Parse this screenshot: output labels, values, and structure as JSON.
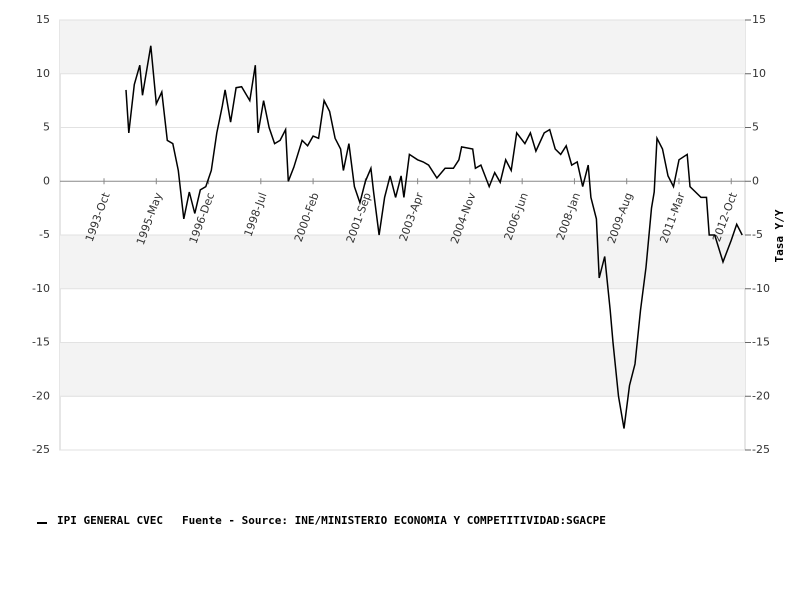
{
  "chart_data": {
    "type": "line",
    "series": [
      {
        "name": "IPI GENERAL CVEC",
        "color": "#000000",
        "x": [
          "1994-Jun",
          "1994-Jul",
          "1994-Sep",
          "1994-Nov",
          "1994-Dec",
          "1995-Mar",
          "1995-May",
          "1995-Jul",
          "1995-Sep",
          "1995-Nov",
          "1996-Jan",
          "1996-Mar",
          "1996-May",
          "1996-Jul",
          "1996-Sep",
          "1996-Nov",
          "1997-Jan",
          "1997-Mar",
          "1997-May",
          "1997-Jun",
          "1997-Aug",
          "1997-Oct",
          "1997-Dec",
          "1998-Mar",
          "1998-May",
          "1998-Jun",
          "1998-Aug",
          "1998-Oct",
          "1998-Dec",
          "1999-Feb",
          "1999-Apr",
          "1999-May",
          "1999-Jul",
          "1999-Oct",
          "1999-Dec",
          "2000-Feb",
          "2000-Apr",
          "2000-Jun",
          "2000-Aug",
          "2000-Oct",
          "2000-Dec",
          "2001-Jan",
          "2001-Mar",
          "2001-May",
          "2001-Jul",
          "2001-Sep",
          "2001-Nov",
          "2001-Dec",
          "2002-Feb",
          "2002-Apr",
          "2002-Jun",
          "2002-Aug",
          "2002-Oct",
          "2002-Nov",
          "2003-Jan",
          "2003-Apr",
          "2003-Jun",
          "2003-Aug",
          "2003-Nov",
          "2004-Feb",
          "2004-May",
          "2004-Jul",
          "2004-Aug",
          "2004-Dec",
          "2005-Jan",
          "2005-Mar",
          "2005-Jun",
          "2005-Aug",
          "2005-Oct",
          "2005-Dec",
          "2006-Feb",
          "2006-Apr",
          "2006-Jul",
          "2006-Sep",
          "2006-Nov",
          "2007-Feb",
          "2007-Apr",
          "2007-Jun",
          "2007-Aug",
          "2007-Oct",
          "2007-Dec",
          "2008-Feb",
          "2008-Apr",
          "2008-Jun",
          "2008-Jul",
          "2008-Sep",
          "2008-Oct",
          "2008-Dec",
          "2009-Feb",
          "2009-Mar",
          "2009-May",
          "2009-Jul",
          "2009-Sep",
          "2009-Nov",
          "2010-Jan",
          "2010-Mar",
          "2010-May",
          "2010-Jun",
          "2010-Jul",
          "2010-Sep",
          "2010-Nov",
          "2011-Jan",
          "2011-Mar",
          "2011-Jun",
          "2011-Jul",
          "2011-Sep",
          "2011-Nov",
          "2012-Jan",
          "2012-Feb",
          "2012-Apr",
          "2012-Jul",
          "2012-Oct",
          "2012-Dec",
          "2013-Feb"
        ],
        "values": [
          8.5,
          4.5,
          9,
          10.8,
          8,
          12.6,
          7.2,
          8.3,
          3.8,
          3.5,
          1,
          -3.5,
          -1,
          -3,
          -0.8,
          -0.5,
          1,
          4.5,
          7,
          8.5,
          5.5,
          8.7,
          8.8,
          7.5,
          10.8,
          4.5,
          7.5,
          5,
          3.5,
          3.8,
          4.8,
          0,
          1.3,
          3.8,
          3.3,
          4.2,
          4,
          7.5,
          6.5,
          4,
          3,
          1,
          3.5,
          -0.5,
          -2,
          0,
          1.2,
          -1,
          -5,
          -1.5,
          0.5,
          -1.5,
          0.5,
          -1.5,
          2.5,
          2,
          1.8,
          1.5,
          0.3,
          1.2,
          1.2,
          2,
          3.2,
          3,
          1.2,
          1.5,
          -0.5,
          0.8,
          -0.1,
          2,
          1,
          4.5,
          3.5,
          4.5,
          2.8,
          4.5,
          4.8,
          3,
          2.5,
          3.3,
          1.5,
          1.8,
          -0.5,
          1.5,
          -1.5,
          -3.5,
          -9,
          -7,
          -12,
          -15,
          -20,
          -23,
          -19,
          -17,
          -12,
          -8,
          -2.5,
          -1,
          4,
          3,
          0.5,
          -0.5,
          2,
          2.5,
          -0.5,
          -1,
          -1.5,
          -1.5,
          -5,
          -5,
          -7.5,
          -5.5,
          -4,
          -5
        ]
      }
    ],
    "xlim": [
      "1992-Jun",
      "2013-Mar"
    ],
    "xticks": [
      "1993-Oct",
      "1995-May",
      "1996-Dec",
      "1998-Jul",
      "2000-Feb",
      "2001-Sep",
      "2003-Apr",
      "2004-Nov",
      "2006-Jun",
      "2008-Jan",
      "2009-Aug",
      "2011-Mar",
      "2012-Oct"
    ],
    "ylim": [
      -25,
      15
    ],
    "yticks": [
      15,
      10,
      5,
      0,
      -5,
      -10,
      -15,
      -20,
      -25
    ],
    "y2lim": [
      -25,
      15
    ],
    "y2ticks": [
      15,
      10,
      5,
      0,
      -5,
      -10,
      -15,
      -20,
      -25
    ],
    "y2label": "Tasa Y/Y",
    "source": "Fuente - Source: INE/MINISTERIO ECONOMIA Y COMPETITIVIDAD:SGACPE"
  }
}
